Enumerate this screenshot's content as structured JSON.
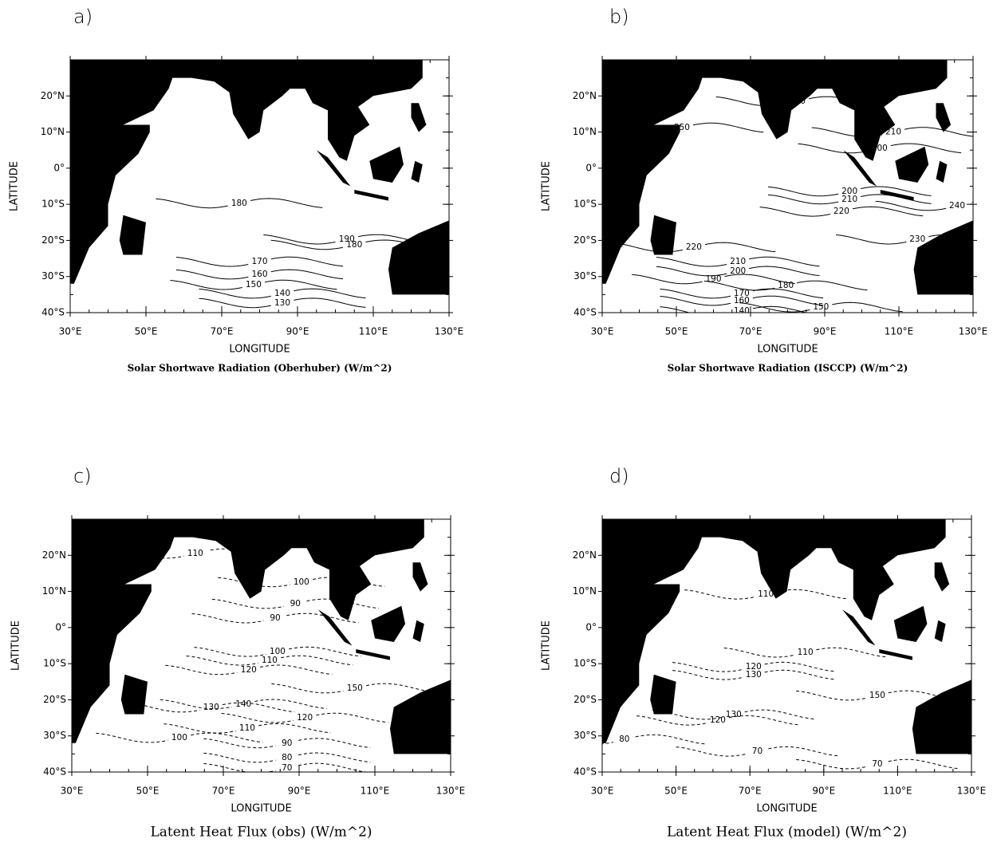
{
  "chart_data": [
    {
      "type": "contour",
      "panel_label": "a)",
      "title": "Solar Shortwave Radiation (Oberhuber) (W/m^2)",
      "xlabel": "LONGITUDE",
      "ylabel": "LATITUDE",
      "line_style": "solid",
      "xlim": [
        30,
        130
      ],
      "ylim": [
        -40,
        30
      ],
      "xticks": [
        {
          "value": 30,
          "label": "30°E"
        },
        {
          "value": 50,
          "label": "50°E"
        },
        {
          "value": 70,
          "label": "70°E"
        },
        {
          "value": 90,
          "label": "90°E"
        },
        {
          "value": 110,
          "label": "110°E"
        },
        {
          "value": 130,
          "label": "130°E"
        }
      ],
      "yticks": [
        {
          "value": 20,
          "label": "20°N"
        },
        {
          "value": 10,
          "label": "10°N"
        },
        {
          "value": 0,
          "label": "0°"
        },
        {
          "value": -10,
          "label": "10°S"
        },
        {
          "value": -20,
          "label": "20°S"
        },
        {
          "value": -30,
          "label": "30°S"
        },
        {
          "value": -40,
          "label": "40°S"
        }
      ],
      "contour_labels": [
        180,
        190,
        180,
        170,
        160,
        150,
        140,
        130
      ]
    },
    {
      "type": "contour",
      "panel_label": "b)",
      "title": "Solar Shortwave Radiation (ISCCP) (W/m^2)",
      "xlabel": "LONGITUDE",
      "ylabel": "LATITUDE",
      "line_style": "solid",
      "xlim": [
        30,
        130
      ],
      "ylim": [
        -40,
        30
      ],
      "xticks": [
        {
          "value": 30,
          "label": "30°E"
        },
        {
          "value": 50,
          "label": "50°E"
        },
        {
          "value": 70,
          "label": "70°E"
        },
        {
          "value": 90,
          "label": "90°E"
        },
        {
          "value": 110,
          "label": "110°E"
        },
        {
          "value": 130,
          "label": "130°E"
        }
      ],
      "yticks": [
        {
          "value": 20,
          "label": "20°N"
        },
        {
          "value": 10,
          "label": "10°N"
        },
        {
          "value": 0,
          "label": "0°"
        },
        {
          "value": -10,
          "label": "10°S"
        },
        {
          "value": -20,
          "label": "20°S"
        },
        {
          "value": -30,
          "label": "30°S"
        },
        {
          "value": -40,
          "label": "40°S"
        }
      ],
      "contour_labels": [
        100,
        210,
        200,
        250,
        200,
        210,
        220,
        240,
        230,
        220,
        210,
        200,
        190,
        180,
        170,
        160,
        150,
        140
      ]
    },
    {
      "type": "contour",
      "panel_label": "c)",
      "title": "Latent Heat Flux (obs) (W/m^2)",
      "xlabel": "LONGITUDE",
      "ylabel": "LATITUDE",
      "line_style": "dashed",
      "xlim": [
        30,
        130
      ],
      "ylim": [
        -40,
        30
      ],
      "xticks": [
        {
          "value": 30,
          "label": "30°E"
        },
        {
          "value": 50,
          "label": "50°E"
        },
        {
          "value": 70,
          "label": "70°E"
        },
        {
          "value": 90,
          "label": "90°E"
        },
        {
          "value": 110,
          "label": "110°E"
        },
        {
          "value": 130,
          "label": "130°E"
        }
      ],
      "yticks": [
        {
          "value": 20,
          "label": "20°N"
        },
        {
          "value": 10,
          "label": "10°N"
        },
        {
          "value": 0,
          "label": "0°"
        },
        {
          "value": -10,
          "label": "10°S"
        },
        {
          "value": -20,
          "label": "20°S"
        },
        {
          "value": -30,
          "label": "30°S"
        },
        {
          "value": -40,
          "label": "40°S"
        }
      ],
      "contour_labels": [
        110,
        100,
        90,
        90,
        100,
        110,
        120,
        150,
        140,
        130,
        120,
        110,
        100,
        90,
        80,
        70
      ]
    },
    {
      "type": "contour",
      "panel_label": "d)",
      "title": "Latent Heat Flux (model) (W/m^2)",
      "xlabel": "LONGITUDE",
      "ylabel": "LATITUDE",
      "line_style": "dashed",
      "xlim": [
        30,
        130
      ],
      "ylim": [
        -40,
        30
      ],
      "xticks": [
        {
          "value": 30,
          "label": "30°E"
        },
        {
          "value": 50,
          "label": "50°E"
        },
        {
          "value": 70,
          "label": "70°E"
        },
        {
          "value": 90,
          "label": "90°E"
        },
        {
          "value": 110,
          "label": "110°E"
        },
        {
          "value": 130,
          "label": "130°E"
        }
      ],
      "yticks": [
        {
          "value": 20,
          "label": "20°N"
        },
        {
          "value": 10,
          "label": "10°N"
        },
        {
          "value": 0,
          "label": "0°"
        },
        {
          "value": -10,
          "label": "10°S"
        },
        {
          "value": -20,
          "label": "20°S"
        },
        {
          "value": -30,
          "label": "30°S"
        },
        {
          "value": -40,
          "label": "40°S"
        }
      ],
      "contour_labels": [
        110,
        110,
        120,
        130,
        150,
        130,
        120,
        80,
        70,
        70
      ]
    }
  ]
}
